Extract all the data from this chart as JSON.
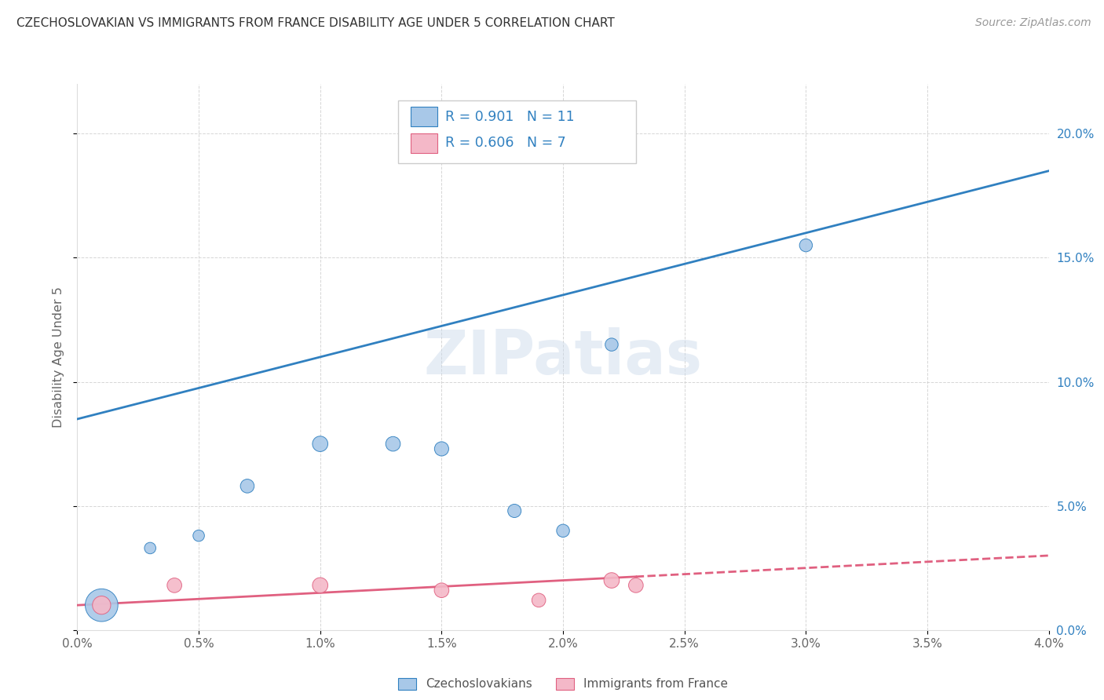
{
  "title": "CZECHOSLOVAKIAN VS IMMIGRANTS FROM FRANCE DISABILITY AGE UNDER 5 CORRELATION CHART",
  "source": "Source: ZipAtlas.com",
  "ylabel_left": "Disability Age Under 5",
  "legend_label_1": "Czechoslovakians",
  "legend_label_2": "Immigrants from France",
  "legend_R1": "R = 0.901",
  "legend_N1": "N = 11",
  "legend_R2": "R = 0.606",
  "legend_N2": "N = 7",
  "blue_color": "#a8c8e8",
  "pink_color": "#f4b8c8",
  "blue_line_color": "#3080c0",
  "pink_line_color": "#e06080",
  "blue_scatter_x": [
    0.001,
    0.003,
    0.005,
    0.007,
    0.01,
    0.013,
    0.015,
    0.018,
    0.02,
    0.022,
    0.03
  ],
  "blue_scatter_y": [
    0.01,
    0.033,
    0.038,
    0.058,
    0.075,
    0.075,
    0.073,
    0.048,
    0.04,
    0.115,
    0.155
  ],
  "blue_scatter_sizes": [
    900,
    110,
    110,
    160,
    200,
    180,
    170,
    150,
    140,
    140,
    140
  ],
  "pink_scatter_x": [
    0.001,
    0.004,
    0.01,
    0.015,
    0.019,
    0.022,
    0.023
  ],
  "pink_scatter_y": [
    0.01,
    0.018,
    0.018,
    0.016,
    0.012,
    0.02,
    0.018
  ],
  "pink_scatter_sizes": [
    280,
    180,
    200,
    180,
    160,
    200,
    180
  ],
  "xlim": [
    0.0,
    0.04
  ],
  "ylim": [
    0.0,
    0.22
  ],
  "xtick_labels": [
    "0.0%",
    "0.5%",
    "1.0%",
    "1.5%",
    "2.0%",
    "2.5%",
    "3.0%",
    "3.5%",
    "4.0%"
  ],
  "xtick_values": [
    0.0,
    0.005,
    0.01,
    0.015,
    0.02,
    0.025,
    0.03,
    0.035,
    0.04
  ],
  "ytick_right_labels": [
    "0.0%",
    "5.0%",
    "10.0%",
    "15.0%",
    "20.0%"
  ],
  "ytick_right_values": [
    0.0,
    0.05,
    0.1,
    0.15,
    0.2
  ],
  "blue_line_x": [
    0.0,
    0.04
  ],
  "blue_line_y": [
    0.085,
    0.185
  ],
  "pink_line_x0": 0.0,
  "pink_line_x_solid_end": 0.023,
  "pink_line_x1": 0.04,
  "pink_line_y0": 0.01,
  "pink_line_y1": 0.03,
  "watermark_text": "ZIPatlas",
  "background_color": "#ffffff",
  "grid_color": "#cccccc"
}
